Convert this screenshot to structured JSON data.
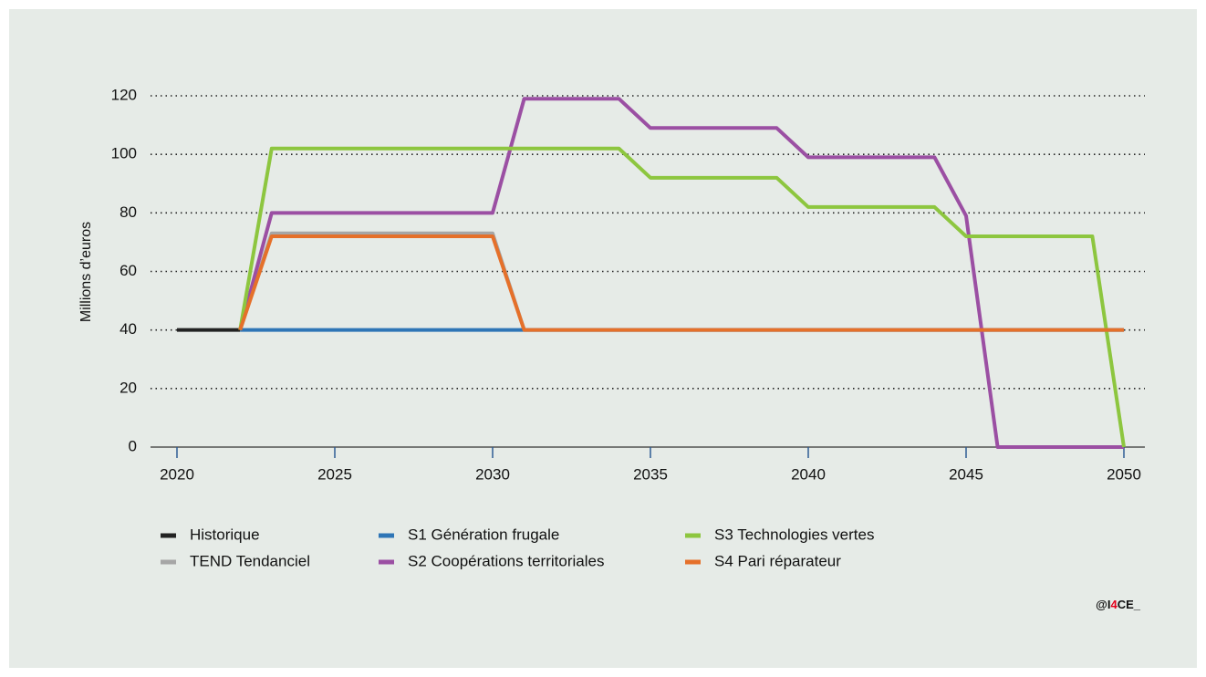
{
  "chart_data": {
    "type": "line",
    "y_label": "Millions d’euros",
    "x": [
      2020,
      2021,
      2022,
      2023,
      2024,
      2025,
      2026,
      2027,
      2028,
      2029,
      2030,
      2031,
      2032,
      2033,
      2034,
      2035,
      2036,
      2037,
      2038,
      2039,
      2040,
      2041,
      2042,
      2043,
      2044,
      2045,
      2046,
      2047,
      2048,
      2049,
      2050
    ],
    "series": [
      {
        "name": "Historique",
        "color": "#222222",
        "values": [
          40,
          40,
          40,
          null,
          null,
          null,
          null,
          null,
          null,
          null,
          null,
          null,
          null,
          null,
          null,
          null,
          null,
          null,
          null,
          null,
          null,
          null,
          null,
          null,
          null,
          null,
          null,
          null,
          null,
          null,
          null
        ]
      },
      {
        "name": "TEND Tendanciel",
        "color": "#a6a6a6",
        "values": [
          null,
          null,
          40,
          73,
          73,
          73,
          73,
          73,
          73,
          73,
          73,
          40,
          40,
          40,
          40,
          40,
          40,
          40,
          40,
          40,
          40,
          40,
          40,
          40,
          40,
          40,
          40,
          40,
          40,
          40,
          40
        ]
      },
      {
        "name": "S1 Génération frugale",
        "color": "#2e75b6",
        "values": [
          null,
          null,
          40,
          40,
          40,
          40,
          40,
          40,
          40,
          40,
          40,
          40,
          40,
          40,
          40,
          40,
          40,
          40,
          40,
          40,
          40,
          40,
          40,
          40,
          40,
          40,
          40,
          40,
          40,
          40,
          40
        ]
      },
      {
        "name": "S2 Coopérations territoriales",
        "color": "#9b4fa3",
        "values": [
          null,
          null,
          40,
          80,
          80,
          80,
          80,
          80,
          80,
          80,
          80,
          119,
          119,
          119,
          119,
          109,
          109,
          109,
          109,
          109,
          99,
          99,
          99,
          99,
          99,
          79,
          0,
          0,
          0,
          0,
          0
        ]
      },
      {
        "name": "S3 Technologies vertes",
        "color": "#8dc63f",
        "values": [
          null,
          null,
          40,
          102,
          102,
          102,
          102,
          102,
          102,
          102,
          102,
          102,
          102,
          102,
          102,
          92,
          92,
          92,
          92,
          92,
          82,
          82,
          82,
          82,
          82,
          72,
          72,
          72,
          72,
          72,
          0
        ]
      },
      {
        "name": "S4 Pari réparateur",
        "color": "#e5702a",
        "values": [
          null,
          null,
          40,
          72,
          72,
          72,
          72,
          72,
          72,
          72,
          72,
          40,
          40,
          40,
          40,
          40,
          40,
          40,
          40,
          40,
          40,
          40,
          40,
          40,
          40,
          40,
          40,
          40,
          40,
          40,
          40
        ]
      }
    ],
    "xlim": [
      2020,
      2050
    ],
    "xticks": [
      2020,
      2025,
      2030,
      2035,
      2040,
      2045,
      2050
    ],
    "ylim": [
      0,
      120
    ],
    "yticks": [
      0,
      20,
      40,
      60,
      80,
      100,
      120
    ],
    "grid": true,
    "credit": [
      "@I",
      "4",
      "CE_"
    ]
  }
}
